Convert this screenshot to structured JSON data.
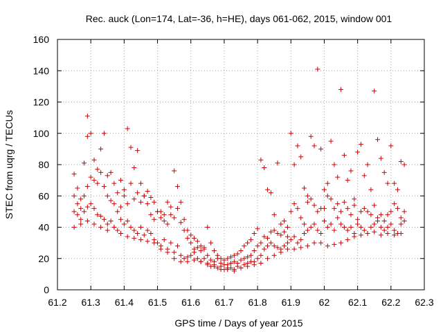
{
  "chart_data": {
    "type": "scatter",
    "title": "Rec. auck (Lon=174, Lat=-36, h=HE), days 061-062, 2015, window 001",
    "xlabel": "GPS time / Days of year 2015",
    "ylabel": "STEC from uqrg / TECUs",
    "xlim": [
      61.2,
      62.3
    ],
    "ylim": [
      0,
      160
    ],
    "xticks": [
      "61.2",
      "61.3",
      "61.4",
      "61.5",
      "61.6",
      "61.7",
      "61.8",
      "61.9",
      "62",
      "62.1",
      "62.2",
      "62.3"
    ],
    "xtick_values": [
      61.2,
      61.3,
      61.4,
      61.5,
      61.6,
      61.7,
      61.8,
      61.9,
      62.0,
      62.1,
      62.2,
      62.3
    ],
    "yticks": [
      "0",
      "20",
      "40",
      "60",
      "80",
      "100",
      "120",
      "140",
      "160"
    ],
    "ytick_values": [
      0,
      20,
      40,
      60,
      80,
      100,
      120,
      140,
      160
    ],
    "grid": true,
    "marker": "plus",
    "color": "#cc0000",
    "series": [
      {
        "x": [
          61.25,
          61.26,
          61.27,
          61.28,
          61.29,
          61.29,
          61.3,
          61.31,
          61.32,
          61.33,
          61.34,
          61.35,
          61.36,
          61.37,
          61.38,
          61.39,
          61.4,
          61.41,
          61.42,
          61.43,
          61.44,
          61.45,
          61.46,
          61.47,
          61.48,
          61.49,
          61.5,
          61.51,
          61.52,
          61.53,
          61.54,
          61.55,
          61.56,
          61.57,
          61.58,
          61.59,
          61.6,
          61.61,
          61.62,
          61.63,
          61.64,
          61.65,
          61.66,
          61.67,
          61.68,
          61.69,
          61.7,
          61.71,
          61.72,
          61.73,
          61.74,
          61.75,
          61.76,
          61.77,
          61.78,
          61.79,
          61.8,
          61.81,
          61.82,
          61.83,
          61.84,
          61.85,
          61.86,
          61.87,
          61.88,
          61.89,
          61.9,
          61.91,
          61.92,
          61.93,
          61.94,
          61.95,
          61.96,
          61.97,
          61.98,
          61.99,
          62.0,
          62.01,
          62.02,
          62.03,
          62.04,
          62.05,
          62.06,
          62.07,
          62.08,
          62.09,
          62.1,
          62.11,
          62.12,
          62.13,
          62.14,
          62.15,
          62.16,
          62.17,
          62.18,
          62.19,
          62.2,
          62.21,
          62.22,
          62.23,
          62.24
        ],
        "y": [
          74,
          65,
          58,
          81,
          111,
          98,
          100,
          83,
          77,
          90,
          100,
          73,
          75,
          68,
          62,
          70,
          64,
          103,
          91,
          78,
          89,
          68,
          60,
          63,
          59,
          56,
          50,
          50,
          48,
          56,
          53,
          76,
          66,
          56,
          45,
          38,
          35,
          33,
          31,
          28,
          26,
          40,
          30,
          25,
          22,
          20,
          19,
          20,
          21,
          22,
          23,
          25,
          28,
          30,
          32,
          36,
          39,
          83,
          78,
          64,
          62,
          48,
          81,
          42,
          44,
          40,
          100,
          80,
          92,
          85,
          65,
          60,
          98,
          92,
          141,
          90,
          64,
          68,
          95,
          80,
          72,
          128,
          86,
          70,
          76,
          58,
          88,
          93,
          73,
          80,
          64,
          127,
          96,
          84,
          75,
          68,
          92,
          68,
          64,
          82,
          80
        ]
      },
      {
        "x": [
          61.25,
          61.26,
          61.27,
          61.28,
          61.29,
          61.3,
          61.31,
          61.32,
          61.33,
          61.34,
          61.35,
          61.36,
          61.37,
          61.38,
          61.39,
          61.4,
          61.41,
          61.42,
          61.43,
          61.44,
          61.45,
          61.46,
          61.47,
          61.48,
          61.49,
          61.5,
          61.51,
          61.52,
          61.53,
          61.54,
          61.55,
          61.56,
          61.57,
          61.58,
          61.59,
          61.6,
          61.61,
          61.62,
          61.63,
          61.64,
          61.65,
          61.66,
          61.67,
          61.68,
          61.69,
          61.7,
          61.71,
          61.72,
          61.73,
          61.74,
          61.75,
          61.76,
          61.77,
          61.78,
          61.79,
          61.8,
          61.81,
          61.82,
          61.83,
          61.84,
          61.85,
          61.86,
          61.87,
          61.88,
          61.89,
          61.9,
          61.91,
          61.92,
          61.93,
          61.94,
          61.95,
          61.96,
          61.97,
          61.98,
          61.99,
          62.0,
          62.01,
          62.02,
          62.03,
          62.04,
          62.05,
          62.06,
          62.07,
          62.08,
          62.09,
          62.1,
          62.11,
          62.12,
          62.13,
          62.14,
          62.15,
          62.16,
          62.17,
          62.18,
          62.19,
          62.2,
          62.21,
          62.22,
          62.23,
          62.24
        ],
        "y": [
          60,
          55,
          52,
          60,
          66,
          72,
          70,
          68,
          75,
          66,
          60,
          57,
          55,
          50,
          53,
          60,
          55,
          68,
          58,
          62,
          56,
          60,
          55,
          48,
          45,
          50,
          46,
          44,
          42,
          48,
          46,
          52,
          43,
          38,
          33,
          30,
          26,
          27,
          25,
          27,
          22,
          19,
          18,
          20,
          17,
          16,
          16,
          17,
          18,
          17,
          19,
          20,
          21,
          22,
          25,
          28,
          30,
          34,
          33,
          37,
          38,
          36,
          35,
          37,
          34,
          50,
          55,
          52,
          46,
          42,
          56,
          58,
          54,
          50,
          52,
          52,
          60,
          58,
          52,
          55,
          50,
          56,
          52,
          48,
          54,
          45,
          50,
          52,
          50,
          48,
          54,
          46,
          48,
          44,
          48,
          50,
          55,
          52,
          46,
          50
        ]
      },
      {
        "x": [
          61.25,
          61.26,
          61.27,
          61.28,
          61.29,
          61.3,
          61.31,
          61.32,
          61.33,
          61.34,
          61.35,
          61.36,
          61.37,
          61.38,
          61.39,
          61.4,
          61.41,
          61.42,
          61.43,
          61.44,
          61.45,
          61.46,
          61.47,
          61.48,
          61.49,
          61.5,
          61.51,
          61.52,
          61.53,
          61.54,
          61.55,
          61.56,
          61.57,
          61.58,
          61.59,
          61.6,
          61.61,
          61.62,
          61.63,
          61.64,
          61.65,
          61.66,
          61.67,
          61.68,
          61.69,
          61.7,
          61.71,
          61.72,
          61.73,
          61.74,
          61.75,
          61.76,
          61.77,
          61.78,
          61.79,
          61.8,
          61.81,
          61.82,
          61.83,
          61.84,
          61.85,
          61.86,
          61.87,
          61.88,
          61.89,
          61.9,
          61.91,
          61.92,
          61.93,
          61.94,
          61.95,
          61.96,
          61.97,
          61.98,
          61.99,
          62.0,
          62.01,
          62.02,
          62.03,
          62.04,
          62.05,
          62.06,
          62.07,
          62.08,
          62.09,
          62.1,
          62.11,
          62.12,
          62.13,
          62.14,
          62.15,
          62.16,
          62.17,
          62.18,
          62.19,
          62.2,
          62.21,
          62.22,
          62.23,
          62.24
        ],
        "y": [
          50,
          48,
          45,
          50,
          53,
          55,
          52,
          48,
          47,
          45,
          42,
          44,
          40,
          38,
          45,
          42,
          44,
          40,
          38,
          36,
          40,
          35,
          38,
          36,
          32,
          30,
          28,
          32,
          26,
          30,
          24,
          28,
          22,
          20,
          21,
          22,
          24,
          20,
          18,
          20,
          16,
          15,
          16,
          14,
          15,
          13,
          14,
          14,
          13,
          15,
          14,
          16,
          17,
          18,
          18,
          20,
          22,
          26,
          28,
          30,
          28,
          27,
          26,
          28,
          30,
          32,
          34,
          30,
          32,
          36,
          38,
          40,
          42,
          38,
          36,
          44,
          40,
          42,
          38,
          46,
          42,
          40,
          38,
          40,
          36,
          42,
          40,
          38,
          36,
          40,
          42,
          44,
          40,
          38,
          40,
          42,
          38,
          36,
          42,
          44
        ]
      },
      {
        "x": [
          61.25,
          61.27,
          61.29,
          61.31,
          61.33,
          61.35,
          61.37,
          61.39,
          61.41,
          61.43,
          61.45,
          61.47,
          61.49,
          61.51,
          61.53,
          61.55,
          61.57,
          61.59,
          61.61,
          61.63,
          61.65,
          61.67,
          61.69,
          61.71,
          61.73,
          61.75,
          61.77,
          61.79,
          61.81,
          61.83,
          61.85,
          61.87,
          61.89,
          61.91,
          61.93,
          61.95,
          61.97,
          61.99,
          62.01,
          62.03,
          62.05,
          62.07,
          62.09,
          62.11,
          62.13,
          62.15,
          62.17,
          62.19,
          62.21,
          62.23
        ],
        "y": [
          40,
          42,
          44,
          42,
          40,
          38,
          40,
          36,
          34,
          33,
          32,
          31,
          30,
          26,
          24,
          20,
          18,
          18,
          19,
          18,
          17,
          15,
          13,
          13,
          12,
          14,
          15,
          16,
          17,
          20,
          22,
          24,
          26,
          26,
          27,
          28,
          30,
          30,
          28,
          29,
          30,
          32,
          34,
          35,
          36,
          37,
          35,
          36,
          35,
          36
        ]
      }
    ]
  }
}
